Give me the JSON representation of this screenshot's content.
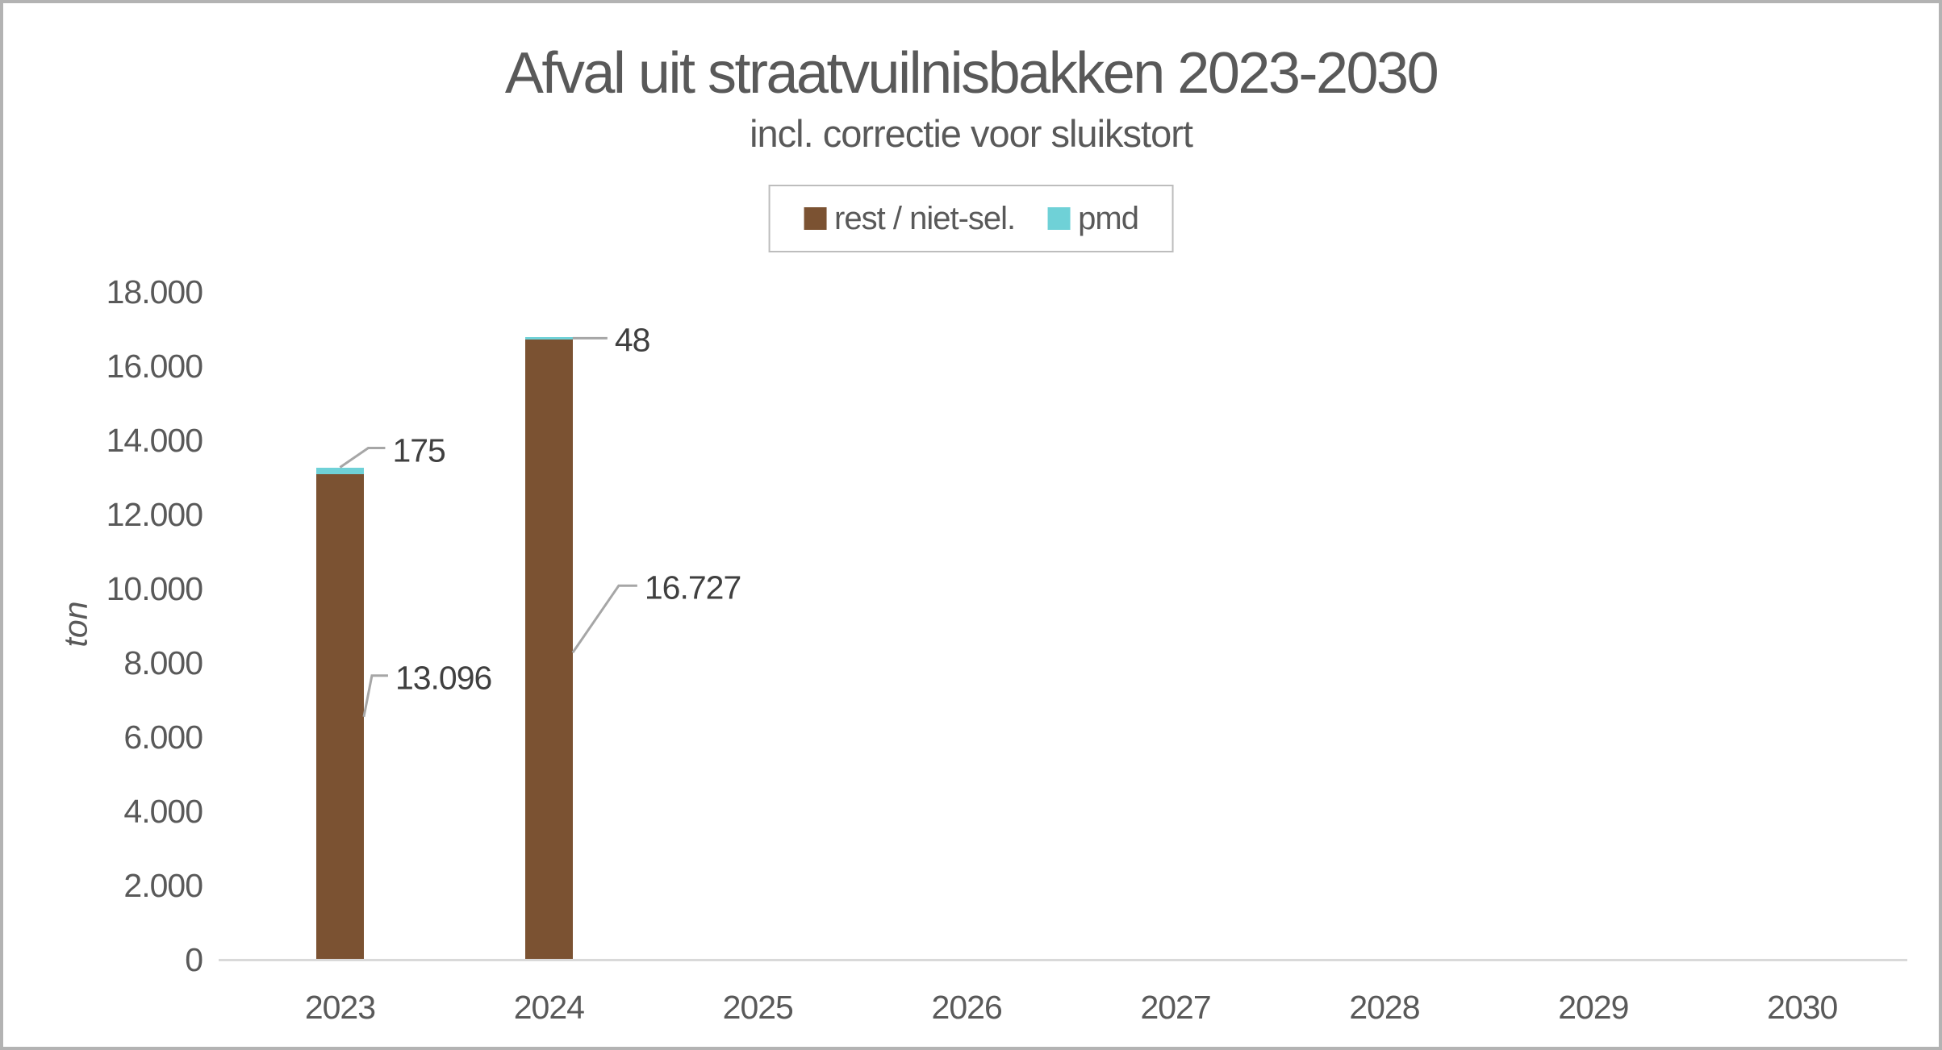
{
  "chart_data": {
    "type": "bar",
    "stacked": true,
    "title": "Afval uit straatvuilnisbakken 2023-2030",
    "subtitle": "incl. correctie voor sluikstort",
    "ylabel": "ton",
    "categories": [
      "2023",
      "2024",
      "2025",
      "2026",
      "2027",
      "2028",
      "2029",
      "2030"
    ],
    "series": [
      {
        "name": "rest / niet-sel.",
        "color": "#7B5232",
        "values": [
          13096,
          16727,
          null,
          null,
          null,
          null,
          null,
          null
        ]
      },
      {
        "name": "pmd",
        "color": "#6FD1D7",
        "values": [
          175,
          48,
          null,
          null,
          null,
          null,
          null,
          null
        ]
      }
    ],
    "data_labels": [
      {
        "category": "2023",
        "series": "pmd",
        "text": "175"
      },
      {
        "category": "2024",
        "series": "pmd",
        "text": "48"
      },
      {
        "category": "2023",
        "series": "rest / niet-sel.",
        "text": "13.096"
      },
      {
        "category": "2024",
        "series": "rest / niet-sel.",
        "text": "16.727"
      }
    ],
    "ylim": [
      0,
      18000
    ],
    "ytick_interval": 2000,
    "yticks": [
      "0",
      "2.000",
      "4.000",
      "6.000",
      "8.000",
      "10.000",
      "12.000",
      "14.000",
      "16.000",
      "18.000"
    ],
    "legend_position": "top-center",
    "grid": false,
    "accent_colors": {
      "rest": "#7B5232",
      "pmd": "#6FD1D7",
      "axis_line": "#D9D9D9",
      "leader_line": "#A6A6A6",
      "text": "#595959",
      "data_label_text": "#3F3F3F"
    }
  }
}
